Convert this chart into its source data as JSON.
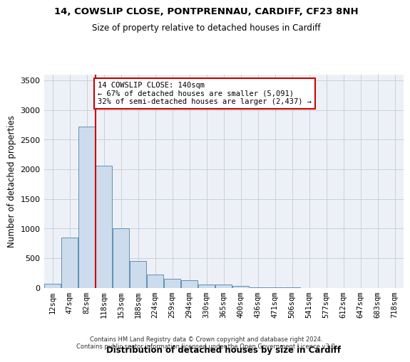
{
  "title_line1": "14, COWSLIP CLOSE, PONTPRENNAU, CARDIFF, CF23 8NH",
  "title_line2": "Size of property relative to detached houses in Cardiff",
  "xlabel": "Distribution of detached houses by size in Cardiff",
  "ylabel": "Number of detached properties",
  "footnote": "Contains HM Land Registry data © Crown copyright and database right 2024.\nContains public sector information licensed under the Open Government Licence v3.0.",
  "bar_labels": [
    "12sqm",
    "47sqm",
    "82sqm",
    "118sqm",
    "153sqm",
    "188sqm",
    "224sqm",
    "259sqm",
    "294sqm",
    "330sqm",
    "365sqm",
    "400sqm",
    "436sqm",
    "471sqm",
    "506sqm",
    "541sqm",
    "577sqm",
    "612sqm",
    "647sqm",
    "683sqm",
    "718sqm"
  ],
  "bar_values": [
    75,
    850,
    2720,
    2060,
    1005,
    455,
    225,
    155,
    135,
    60,
    55,
    30,
    15,
    10,
    5,
    0,
    0,
    0,
    0,
    0,
    0
  ],
  "bar_color": "#ccdcec",
  "bar_edge_color": "#6090b8",
  "grid_color": "#c8d0da",
  "bg_color": "#edf1f7",
  "property_line_color": "#cc0000",
  "annotation_text": "14 COWSLIP CLOSE: 140sqm\n← 67% of detached houses are smaller (5,091)\n32% of semi-detached houses are larger (2,437) →",
  "annotation_box_color": "#cc0000",
  "ylim": [
    0,
    3600
  ],
  "yticks": [
    0,
    500,
    1000,
    1500,
    2000,
    2500,
    3000,
    3500
  ],
  "property_line_bin": 3
}
